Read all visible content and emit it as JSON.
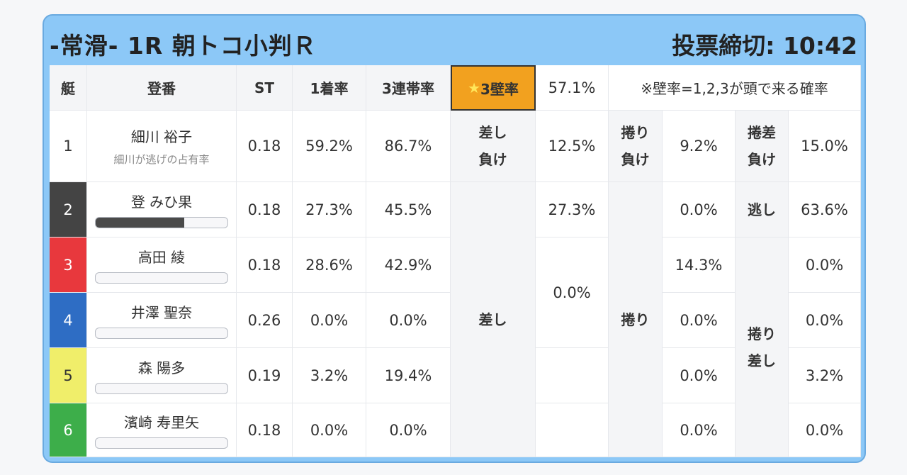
{
  "header": {
    "race_title": "-常滑- 1R 朝トコ小判Ｒ",
    "deadline": "投票締切: 10:42"
  },
  "columns": {
    "lane": "艇",
    "reg": "登番",
    "st": "ST",
    "first_rate": "1着率",
    "third_rate": "3連帯率",
    "wall_star": "★",
    "wall_label": "3壁率",
    "wall_value": "57.1%",
    "wall_note": "※壁率=1,2,3が頭で来る確率"
  },
  "colors": {
    "lane1": "#ffffff",
    "lane2": "#444444",
    "lane3": "#e8383d",
    "lane4": "#2e6dc4",
    "lane5": "#f0ee6a",
    "lane6": "#3dae4a"
  },
  "rows": [
    {
      "lane": "1",
      "name": "細川 裕子",
      "sub": "細川が逃げの占有率",
      "st": "0.18",
      "first": "59.2%",
      "third": "86.7%"
    },
    {
      "lane": "2",
      "name": "登 みひ果",
      "bar": 0.67,
      "st": "0.18",
      "first": "27.3%",
      "third": "45.5%"
    },
    {
      "lane": "3",
      "name": "高田 綾",
      "bar": 0,
      "st": "0.18",
      "first": "28.6%",
      "third": "42.9%"
    },
    {
      "lane": "4",
      "name": "井澤 聖奈",
      "bar": 0,
      "st": "0.26",
      "first": "0.0%",
      "third": "0.0%"
    },
    {
      "lane": "5",
      "name": "森 陽多",
      "bar": 0,
      "st": "0.19",
      "first": "3.2%",
      "third": "19.4%"
    },
    {
      "lane": "6",
      "name": "濱崎 寿里矢",
      "bar": 0,
      "st": "0.18",
      "first": "0.0%",
      "third": "0.0%"
    }
  ],
  "patterns": {
    "r1_a_l1": "差し",
    "r1_a_l2": "負け",
    "r1_a_val": "12.5%",
    "r1_b_l1": "捲り",
    "r1_b_l2": "負け",
    "r1_b_val": "9.2%",
    "r1_c_l1": "捲差",
    "r1_c_l2": "負け",
    "r1_c_val": "15.0%",
    "sashi": "差し",
    "makuri": "捲り",
    "makurisashi_l1": "捲り",
    "makurisashi_l2": "差し",
    "nige": "逃し",
    "sashi_vals": [
      "27.3%",
      "0.0%"
    ],
    "makuri_vals": [
      "0.0%",
      "14.3%",
      "0.0%",
      "0.0%",
      "0.0%"
    ],
    "nige_val": "63.6%",
    "ms_vals": [
      "0.0%",
      "0.0%",
      "3.2%",
      "0.0%"
    ]
  }
}
